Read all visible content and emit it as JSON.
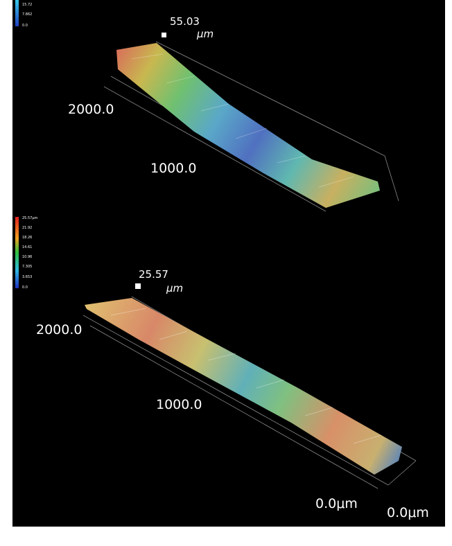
{
  "panels": [
    {
      "colorbar": {
        "labels": [
          "15.72",
          "7.862",
          "0.0"
        ]
      },
      "max_value": "55.03",
      "unit": "μm",
      "axis_labels": [
        "2000.0",
        "1000.0"
      ]
    },
    {
      "colorbar": {
        "labels": [
          "25.57μm",
          "21.92",
          "18.26",
          "14.61",
          "10.96",
          "7.305",
          "3.653",
          "0.0"
        ]
      },
      "max_value": "25.57",
      "unit": "μm",
      "axis_labels": [
        "2000.0",
        "1000.0",
        "0.0μm",
        "0.0μm"
      ]
    }
  ]
}
